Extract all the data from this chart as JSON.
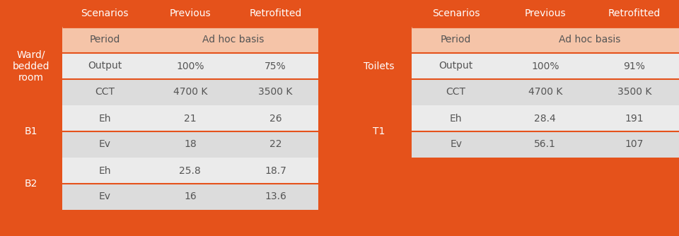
{
  "orange_dark": "#E5521B",
  "orange_light": "#F5C4A8",
  "gray_light": "#EBEBEB",
  "gray_mid": "#DCDCDC",
  "text_dark": "#555555",
  "text_white": "#FFFFFF",
  "left_table": {
    "header": [
      "Scenarios",
      "Previous",
      "Retrofitted"
    ],
    "groups": [
      {
        "label": "Ward/\nbedded\nroom",
        "rows": [
          {
            "cells": [
              "Period",
              "Ad hoc basis",
              ""
            ],
            "merged": true,
            "bg": "orange_light"
          },
          {
            "cells": [
              "Output",
              "100%",
              "75%"
            ],
            "merged": false,
            "bg": "gray_light"
          },
          {
            "cells": [
              "CCT",
              "4700 K",
              "3500 K"
            ],
            "merged": false,
            "bg": "gray_mid"
          }
        ]
      },
      {
        "label": "B1",
        "rows": [
          {
            "cells": [
              "Eh",
              "21",
              "26"
            ],
            "merged": false,
            "bg": "gray_light"
          },
          {
            "cells": [
              "Ev",
              "18",
              "22"
            ],
            "merged": false,
            "bg": "gray_mid"
          }
        ]
      },
      {
        "label": "B2",
        "rows": [
          {
            "cells": [
              "Eh",
              "25.8",
              "18.7"
            ],
            "merged": false,
            "bg": "gray_light"
          },
          {
            "cells": [
              "Ev",
              "16",
              "13.6"
            ],
            "merged": false,
            "bg": "gray_mid"
          }
        ]
      }
    ]
  },
  "right_table": {
    "header": [
      "Scenarios",
      "Previous",
      "Retrofitted"
    ],
    "groups": [
      {
        "label": "Toilets",
        "rows": [
          {
            "cells": [
              "Period",
              "Ad hoc basis",
              ""
            ],
            "merged": true,
            "bg": "orange_light"
          },
          {
            "cells": [
              "Output",
              "100%",
              "91%"
            ],
            "merged": false,
            "bg": "gray_light"
          },
          {
            "cells": [
              "CCT",
              "4700 K",
              "3500 K"
            ],
            "merged": false,
            "bg": "gray_mid"
          }
        ]
      },
      {
        "label": "T1",
        "rows": [
          {
            "cells": [
              "Eh",
              "28.4",
              "191"
            ],
            "merged": false,
            "bg": "gray_light"
          },
          {
            "cells": [
              "Ev",
              "56.1",
              "107"
            ],
            "merged": false,
            "bg": "gray_mid"
          }
        ]
      }
    ]
  }
}
